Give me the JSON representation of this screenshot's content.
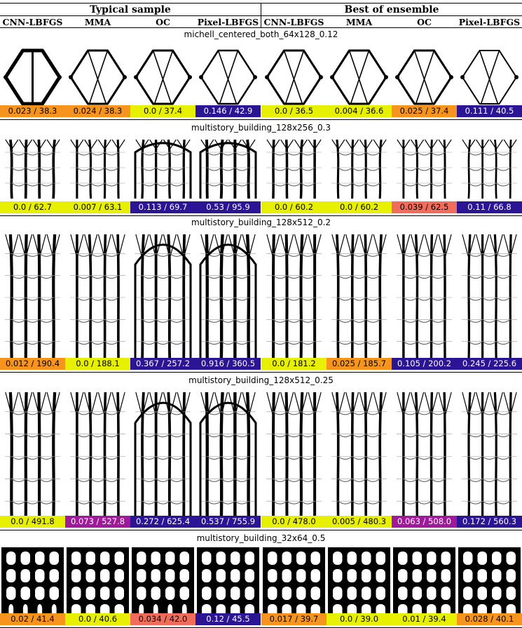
{
  "header": {
    "groups": [
      "Typical sample",
      "Best of ensemble"
    ],
    "methods": [
      "CNN-LBFGS",
      "MMA",
      "OC",
      "Pixel-LBFGS",
      "CNN-LBFGS",
      "MMA",
      "OC",
      "Pixel-LBFGS"
    ]
  },
  "colors": {
    "yellow": "#e6f000",
    "orange": "#f7941d",
    "salmon": "#f26c5b",
    "purple": "#a0199a",
    "navy": "#2b1594"
  },
  "sections": [
    {
      "title": "michell_centered_both_64x128_0.12",
      "structure": "michell",
      "labels": [
        {
          "text": "0.023 / 38.3",
          "color": "orange"
        },
        {
          "text": "0.024 / 38.3",
          "color": "orange"
        },
        {
          "text": "0.0 / 37.4",
          "color": "yellow"
        },
        {
          "text": "0.146 / 42.9",
          "color": "navy"
        },
        {
          "text": "0.0 / 36.5",
          "color": "yellow"
        },
        {
          "text": "0.004 / 36.6",
          "color": "yellow"
        },
        {
          "text": "0.025 / 37.4",
          "color": "orange"
        },
        {
          "text": "0.111 / 40.5",
          "color": "navy"
        }
      ]
    },
    {
      "title": "multistory_building_128x256_0.3",
      "structure": "building",
      "labels": [
        {
          "text": "0.0 / 62.7",
          "color": "yellow"
        },
        {
          "text": "0.007 / 63.1",
          "color": "yellow"
        },
        {
          "text": "0.113 / 69.7",
          "color": "navy"
        },
        {
          "text": "0.53 / 95.9",
          "color": "navy"
        },
        {
          "text": "0.0 / 60.2",
          "color": "yellow"
        },
        {
          "text": "0.0 / 60.2",
          "color": "yellow"
        },
        {
          "text": "0.039 / 62.5",
          "color": "salmon"
        },
        {
          "text": "0.11 / 66.8",
          "color": "navy"
        }
      ]
    },
    {
      "title": "multistory_building_128x512_0.2",
      "structure": "tall",
      "labels": [
        {
          "text": "0.012 / 190.4",
          "color": "orange"
        },
        {
          "text": "0.0 / 188.1",
          "color": "yellow"
        },
        {
          "text": "0.367 / 257.2",
          "color": "navy"
        },
        {
          "text": "0.916 / 360.5",
          "color": "navy"
        },
        {
          "text": "0.0 / 181.2",
          "color": "yellow"
        },
        {
          "text": "0.025 / 185.7",
          "color": "orange"
        },
        {
          "text": "0.105 / 200.2",
          "color": "navy"
        },
        {
          "text": "0.245 / 225.6",
          "color": "navy"
        }
      ]
    },
    {
      "title": "multistory_building_128x512_0.25",
      "structure": "tall",
      "labels": [
        {
          "text": "0.0 / 491.8",
          "color": "yellow"
        },
        {
          "text": "0.073 / 527.8",
          "color": "purple"
        },
        {
          "text": "0.272 / 625.4",
          "color": "navy"
        },
        {
          "text": "0.537 / 755.9",
          "color": "navy"
        },
        {
          "text": "0.0 / 478.0",
          "color": "yellow"
        },
        {
          "text": "0.005 / 480.3",
          "color": "yellow"
        },
        {
          "text": "0.063 / 508.0",
          "color": "purple"
        },
        {
          "text": "0.172 / 560.3",
          "color": "navy"
        }
      ]
    },
    {
      "title": "multistory_building_32x64_0.5",
      "structure": "blocky",
      "labels": [
        {
          "text": "0.02 / 41.4",
          "color": "orange"
        },
        {
          "text": "0.0 / 40.6",
          "color": "yellow"
        },
        {
          "text": "0.034 / 42.0",
          "color": "salmon"
        },
        {
          "text": "0.12 / 45.5",
          "color": "navy"
        },
        {
          "text": "0.017 / 39.7",
          "color": "orange"
        },
        {
          "text": "0.0 / 39.0",
          "color": "yellow"
        },
        {
          "text": "0.01 / 39.4",
          "color": "yellow"
        },
        {
          "text": "0.028 / 40.1",
          "color": "orange"
        }
      ]
    }
  ]
}
